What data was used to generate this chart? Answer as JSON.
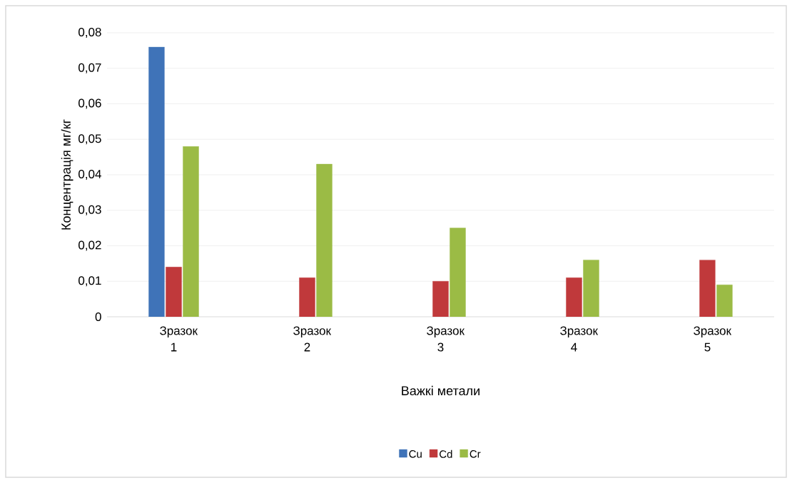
{
  "chart_data": {
    "type": "bar",
    "categories": [
      "Зразок 1",
      "Зразок 2",
      "Зразок 3",
      "Зразок 4",
      "Зразок 5"
    ],
    "series": [
      {
        "name": "Cu",
        "color": "#3f73b8",
        "values": [
          0.076,
          null,
          null,
          null,
          null
        ]
      },
      {
        "name": "Cd",
        "color": "#c0393b",
        "values": [
          0.014,
          0.011,
          0.01,
          0.011,
          0.016
        ]
      },
      {
        "name": "Cr",
        "color": "#9bbb45",
        "values": [
          0.048,
          0.043,
          0.025,
          0.016,
          0.009
        ]
      }
    ],
    "xlabel": "Важкі метали",
    "ylabel": "Концентрація мг/кг",
    "ylim": [
      0,
      0.08
    ],
    "yticks": [
      0,
      {
        "value": 0.01,
        "label": "0,01"
      },
      {
        "value": 0.02,
        "label": "0,02"
      },
      {
        "value": 0.03,
        "label": "0,03"
      },
      {
        "value": 0.04,
        "label": "0,04"
      },
      {
        "value": 0.05,
        "label": "0,05"
      },
      {
        "value": 0.06,
        "label": "0,06"
      },
      {
        "value": 0.07,
        "label": "0,07"
      },
      {
        "value": 0.08,
        "label": "0,08"
      }
    ],
    "grid": "y",
    "legend": "bottom"
  }
}
